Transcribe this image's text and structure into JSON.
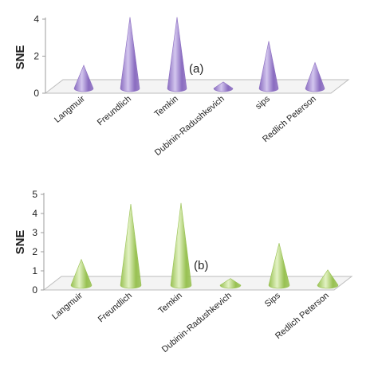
{
  "chart_data": [
    {
      "type": "bar",
      "panel_label": "(a)",
      "ylabel": "SNE",
      "yticks": [
        "0",
        "2",
        "4"
      ],
      "ylim": [
        0,
        4
      ],
      "categories": [
        "Langmuir",
        "Freundlich",
        "Temkin",
        "Dubinin-Radushkevich",
        "sips",
        "Redlich Peterson"
      ],
      "values": [
        1.25,
        3.85,
        3.85,
        0.35,
        2.55,
        1.4
      ],
      "color": "#8a6cc0",
      "highlight": "#d3c6ee",
      "grid": false,
      "legend": "none"
    },
    {
      "type": "bar",
      "panel_label": "(b)",
      "ylabel": "SNE",
      "yticks": [
        "0",
        "1",
        "2",
        "3",
        "4",
        "5"
      ],
      "ylim": [
        0,
        5
      ],
      "categories": [
        "Langmuir",
        "Freundlich",
        "Temkin",
        "Dubinin-Radushkevich",
        "Sips",
        "Redlich Peterson"
      ],
      "values": [
        1.35,
        4.25,
        4.3,
        0.35,
        2.2,
        0.8
      ],
      "color": "#98c152",
      "highlight": "#e3f2c4",
      "grid": false,
      "legend": "none"
    }
  ]
}
